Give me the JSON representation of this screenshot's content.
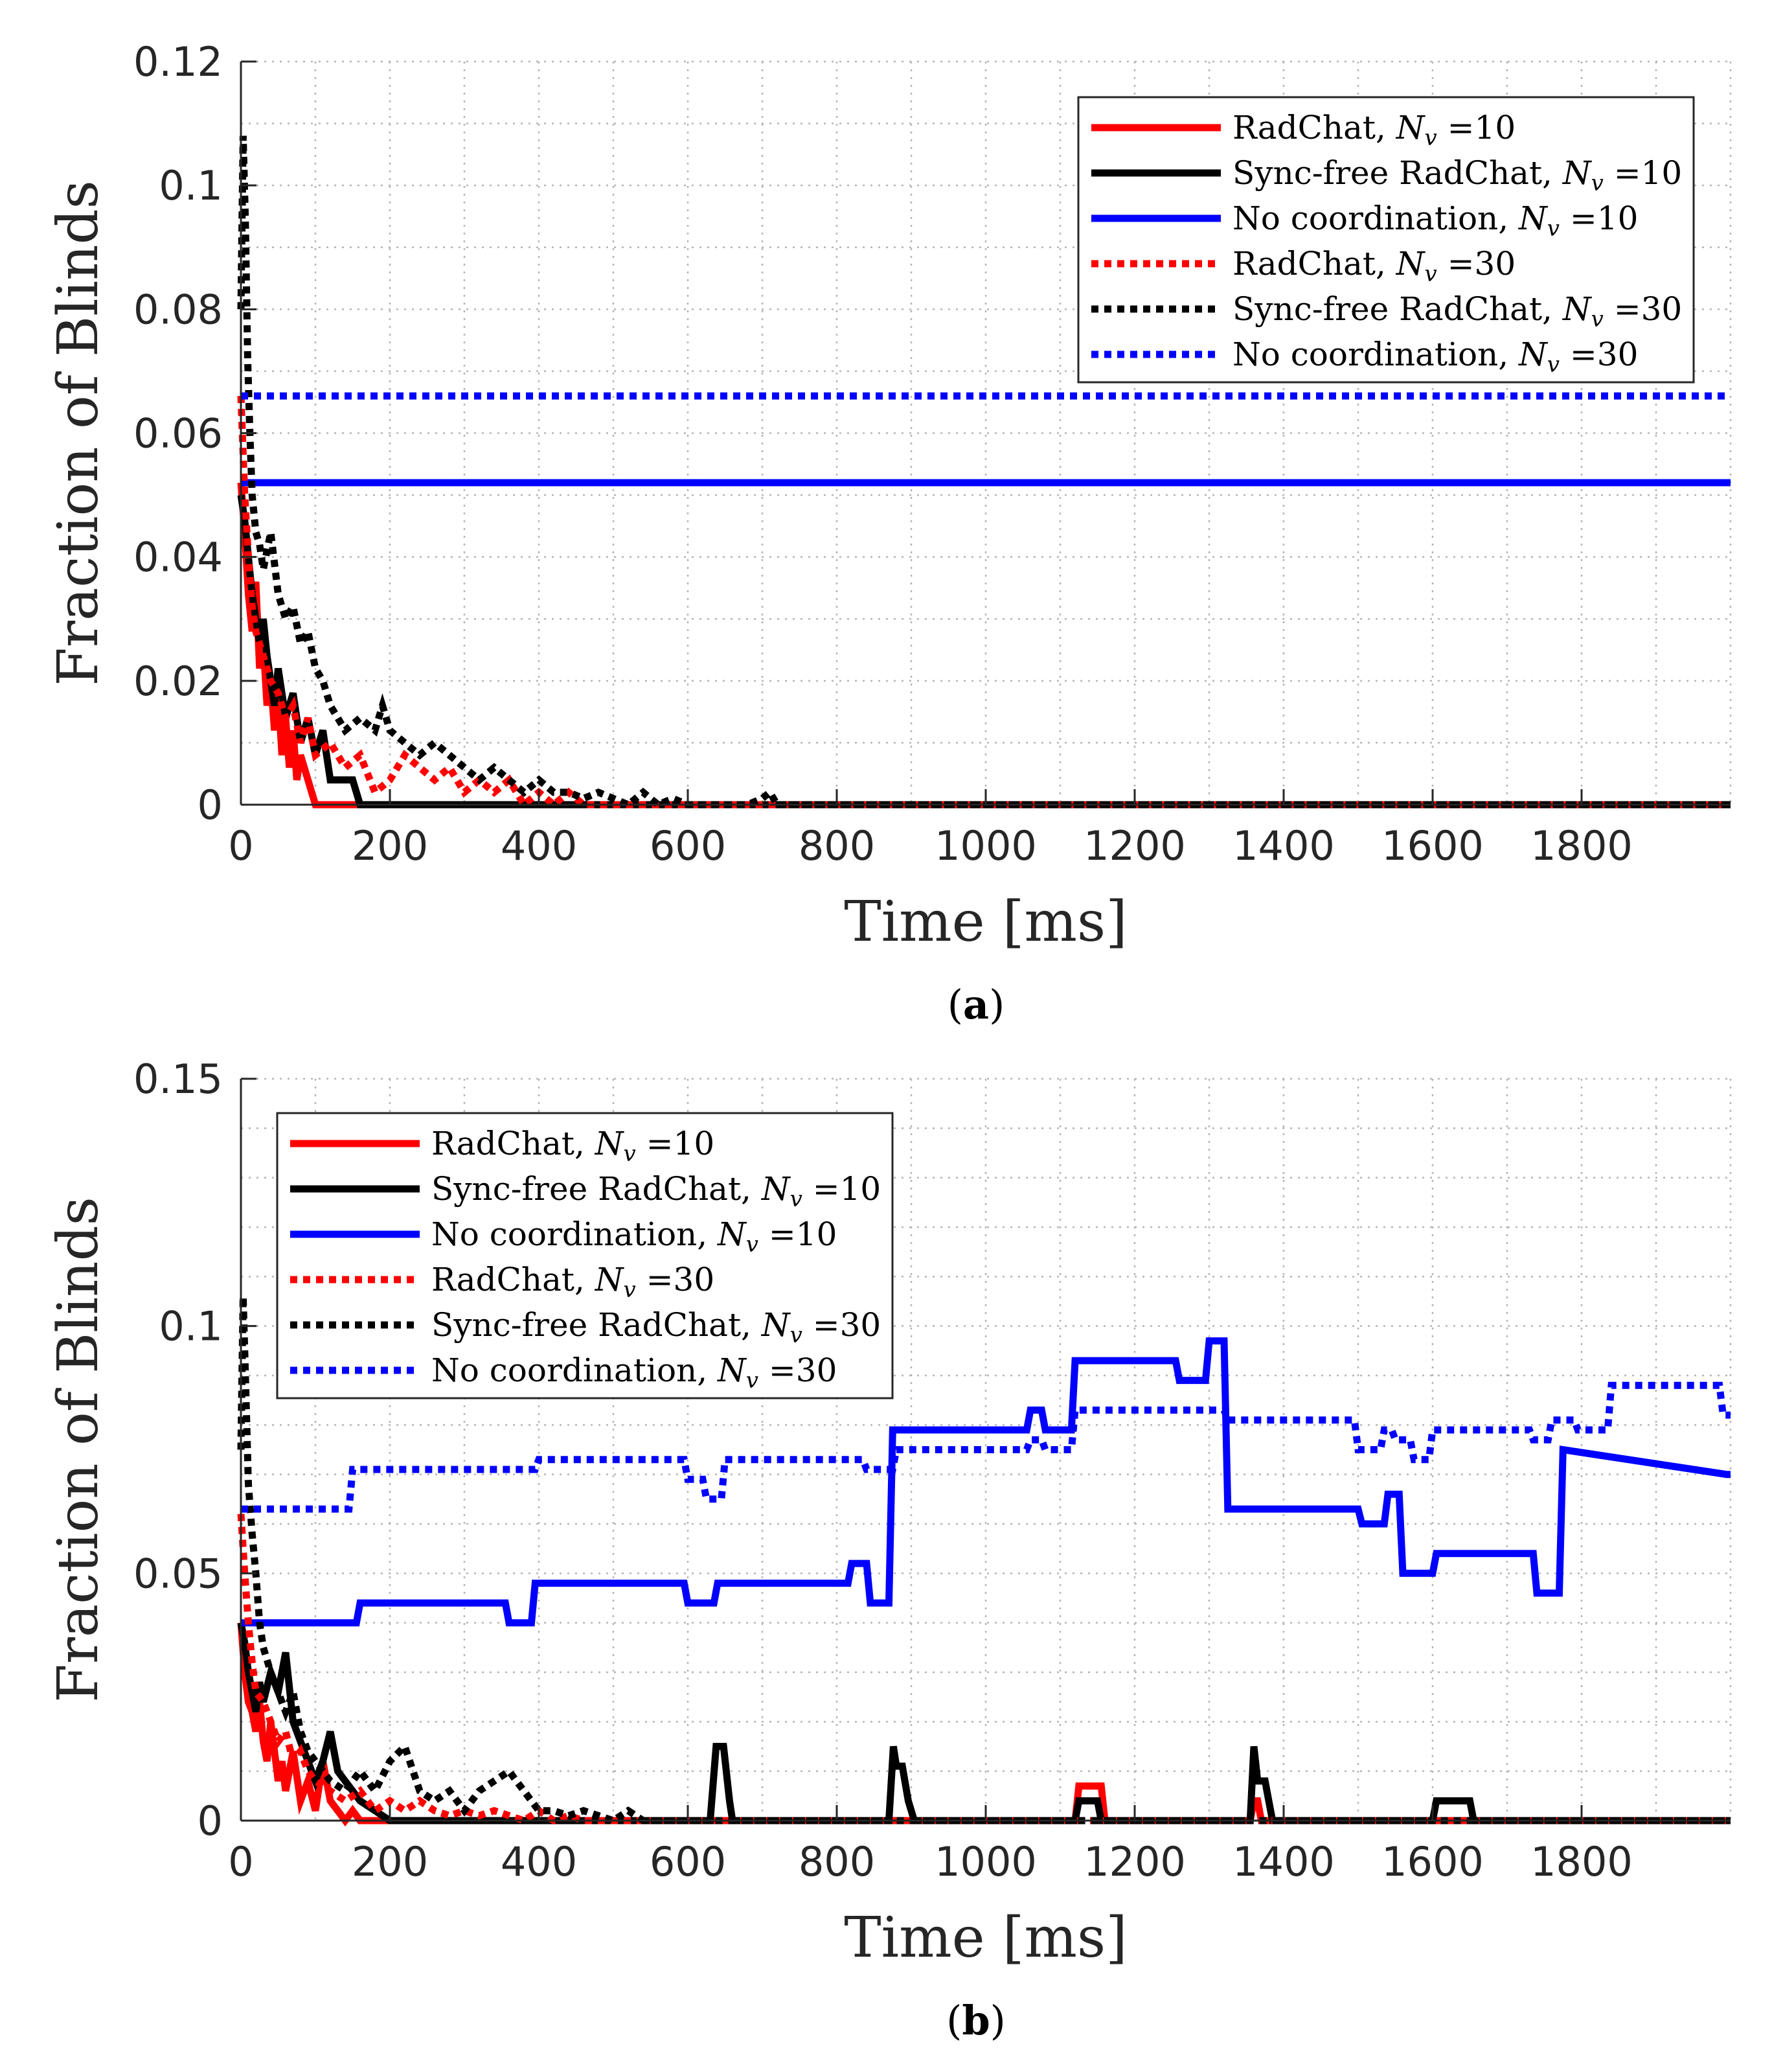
{
  "chart_data": [
    {
      "type": "line",
      "id": "a",
      "caption": "(a)",
      "xlabel": "Time [ms]",
      "ylabel": "Fraction of Blinds",
      "xlim": [
        0,
        2000
      ],
      "ylim": [
        0,
        0.12
      ],
      "xticks": [
        0,
        200,
        400,
        600,
        800,
        1000,
        1200,
        1400,
        1600,
        1800
      ],
      "yticks": [
        0,
        0.02,
        0.04,
        0.06,
        0.08,
        0.1,
        0.12
      ],
      "ytick_labels": [
        "0",
        "0.02",
        "0.04",
        "0.06",
        "0.08",
        "0.1",
        "0.12"
      ],
      "grid": true,
      "legend_position": "top-right",
      "series": [
        {
          "name": "RadChat, N_v =10",
          "label_text": "RadChat, ",
          "nv_value": "10",
          "color": "#ff0000",
          "style": "solid",
          "x": [
            0,
            5,
            10,
            15,
            20,
            25,
            30,
            35,
            40,
            45,
            50,
            55,
            60,
            65,
            70,
            75,
            80,
            90,
            100,
            110,
            2000
          ],
          "y": [
            0.052,
            0.044,
            0.034,
            0.028,
            0.036,
            0.022,
            0.026,
            0.016,
            0.02,
            0.012,
            0.018,
            0.008,
            0.014,
            0.006,
            0.012,
            0.004,
            0.008,
            0.004,
            0.0,
            0.0,
            0.0
          ]
        },
        {
          "name": "Sync-free RadChat, N_v =10",
          "label_text": "Sync-free RadChat, ",
          "nv_value": "10",
          "color": "#000000",
          "style": "solid",
          "x": [
            0,
            5,
            10,
            15,
            20,
            25,
            30,
            35,
            40,
            45,
            50,
            60,
            70,
            80,
            90,
            100,
            110,
            120,
            130,
            150,
            160,
            2000
          ],
          "y": [
            0.05,
            0.046,
            0.04,
            0.034,
            0.03,
            0.026,
            0.03,
            0.024,
            0.02,
            0.016,
            0.022,
            0.014,
            0.018,
            0.01,
            0.014,
            0.008,
            0.012,
            0.004,
            0.004,
            0.004,
            0.0,
            0.0
          ]
        },
        {
          "name": "No coordination, N_v =10",
          "label_text": "No coordination, ",
          "nv_value": "10",
          "color": "#0000ff",
          "style": "solid",
          "x": [
            0,
            2000
          ],
          "y": [
            0.052,
            0.052
          ]
        },
        {
          "name": "RadChat, N_v =30",
          "label_text": "RadChat, ",
          "nv_value": "30",
          "color": "#ff0000",
          "style": "dotted",
          "x": [
            0,
            5,
            10,
            15,
            20,
            30,
            40,
            50,
            60,
            70,
            80,
            90,
            100,
            120,
            140,
            160,
            180,
            200,
            220,
            240,
            260,
            280,
            300,
            320,
            340,
            360,
            380,
            400,
            420,
            440,
            460,
            480,
            2000
          ],
          "y": [
            0.066,
            0.05,
            0.04,
            0.032,
            0.028,
            0.024,
            0.02,
            0.018,
            0.014,
            0.016,
            0.01,
            0.014,
            0.008,
            0.01,
            0.006,
            0.008,
            0.002,
            0.004,
            0.008,
            0.006,
            0.004,
            0.006,
            0.002,
            0.004,
            0.002,
            0.004,
            0.0,
            0.002,
            0.0,
            0.002,
            0.0,
            0.0,
            0.0
          ]
        },
        {
          "name": "Sync-free RadChat, N_v =30",
          "label_text": "Sync-free RadChat, ",
          "nv_value": "30",
          "color": "#000000",
          "style": "dotted",
          "x": [
            0,
            3,
            6,
            9,
            12,
            15,
            20,
            25,
            30,
            40,
            50,
            60,
            70,
            80,
            90,
            100,
            110,
            120,
            140,
            160,
            180,
            190,
            200,
            220,
            240,
            260,
            280,
            300,
            320,
            340,
            360,
            380,
            400,
            420,
            440,
            460,
            480,
            500,
            520,
            540,
            560,
            580,
            600,
            620,
            640,
            660,
            680,
            700,
            710,
            720,
            740,
            2000
          ],
          "y": [
            0.08,
            0.108,
            0.094,
            0.072,
            0.06,
            0.05,
            0.044,
            0.042,
            0.038,
            0.044,
            0.034,
            0.03,
            0.032,
            0.026,
            0.028,
            0.022,
            0.02,
            0.016,
            0.012,
            0.014,
            0.012,
            0.016,
            0.012,
            0.01,
            0.008,
            0.01,
            0.008,
            0.006,
            0.004,
            0.006,
            0.004,
            0.002,
            0.004,
            0.002,
            0.002,
            0.001,
            0.002,
            0.001,
            0.0,
            0.002,
            0.0,
            0.001,
            0.0,
            0.0,
            0.0,
            0.0,
            0.0,
            0.001,
            0.002,
            0.0,
            0.0,
            0.0
          ]
        },
        {
          "name": "No coordination, N_v =30",
          "label_text": "No coordination, ",
          "nv_value": "30",
          "color": "#0000ff",
          "style": "dotted",
          "x": [
            0,
            2000
          ],
          "y": [
            0.066,
            0.066
          ]
        }
      ]
    },
    {
      "type": "line",
      "id": "b",
      "caption": "(b)",
      "xlabel": "Time [ms]",
      "ylabel": "Fraction of Blinds",
      "xlim": [
        0,
        2000
      ],
      "ylim": [
        0,
        0.15
      ],
      "xticks": [
        0,
        200,
        400,
        600,
        800,
        1000,
        1200,
        1400,
        1600,
        1800
      ],
      "yticks": [
        0,
        0.05,
        0.1,
        0.15
      ],
      "ytick_labels": [
        "0",
        "0.05",
        "0.1",
        "0.15"
      ],
      "minor_grid_y_step": 0.01,
      "grid": true,
      "legend_position": "top-left",
      "series": [
        {
          "name": "RadChat, N_v =10",
          "label_text": "RadChat, ",
          "nv_value": "10",
          "color": "#ff0000",
          "style": "solid",
          "x": [
            0,
            5,
            10,
            15,
            20,
            25,
            30,
            35,
            40,
            45,
            50,
            55,
            60,
            70,
            80,
            90,
            100,
            110,
            120,
            130,
            140,
            150,
            160,
            200,
            1120,
            1125,
            1155,
            1160,
            1355,
            1360,
            1365,
            1370,
            2000
          ],
          "y": [
            0.04,
            0.03,
            0.024,
            0.022,
            0.018,
            0.024,
            0.016,
            0.012,
            0.02,
            0.014,
            0.008,
            0.012,
            0.006,
            0.014,
            0.004,
            0.008,
            0.002,
            0.012,
            0.004,
            0.002,
            0.0,
            0.002,
            0.0,
            0.0,
            0.0,
            0.007,
            0.007,
            0.0,
            0.0,
            0.004,
            0.004,
            0.0,
            0.0
          ]
        },
        {
          "name": "Sync-free RadChat, N_v =10",
          "label_text": "Sync-free RadChat, ",
          "nv_value": "10",
          "color": "#000000",
          "style": "solid",
          "x": [
            0,
            5,
            10,
            15,
            20,
            25,
            30,
            40,
            50,
            60,
            70,
            80,
            90,
            100,
            110,
            120,
            130,
            140,
            150,
            160,
            180,
            200,
            630,
            638,
            648,
            656,
            660,
            870,
            876,
            880,
            888,
            896,
            904,
            1120,
            1125,
            1150,
            1155,
            1355,
            1360,
            1365,
            1375,
            1380,
            1385,
            1600,
            1605,
            1650,
            1655,
            2000
          ],
          "y": [
            0.04,
            0.036,
            0.03,
            0.026,
            0.022,
            0.028,
            0.024,
            0.03,
            0.026,
            0.034,
            0.02,
            0.016,
            0.012,
            0.008,
            0.012,
            0.018,
            0.01,
            0.008,
            0.006,
            0.004,
            0.002,
            0.0,
            0.0,
            0.015,
            0.015,
            0.004,
            0.0,
            0.0,
            0.015,
            0.011,
            0.011,
            0.004,
            0.0,
            0.0,
            0.004,
            0.004,
            0.0,
            0.0,
            0.015,
            0.008,
            0.008,
            0.004,
            0.0,
            0.0,
            0.004,
            0.004,
            0.0,
            0.0
          ]
        },
        {
          "name": "No coordination, N_v =10",
          "label_text": "No coordination, ",
          "nv_value": "10",
          "color": "#0000ff",
          "style": "solid",
          "x": [
            0,
            155,
            160,
            355,
            360,
            390,
            395,
            595,
            600,
            635,
            640,
            815,
            820,
            840,
            845,
            870,
            875,
            1055,
            1060,
            1075,
            1080,
            1115,
            1120,
            1255,
            1260,
            1295,
            1300,
            1320,
            1325,
            1500,
            1505,
            1535,
            1540,
            1555,
            1560,
            1600,
            1605,
            1735,
            1740,
            1770,
            1775,
            1995,
            2000
          ],
          "y": [
            0.04,
            0.04,
            0.044,
            0.044,
            0.04,
            0.04,
            0.048,
            0.048,
            0.044,
            0.044,
            0.048,
            0.048,
            0.052,
            0.052,
            0.044,
            0.044,
            0.079,
            0.079,
            0.083,
            0.083,
            0.079,
            0.079,
            0.093,
            0.093,
            0.089,
            0.089,
            0.097,
            0.097,
            0.063,
            0.063,
            0.06,
            0.06,
            0.066,
            0.066,
            0.05,
            0.05,
            0.054,
            0.054,
            0.046,
            0.046,
            0.075,
            0.07,
            0.07
          ]
        },
        {
          "name": "RadChat, N_v =30",
          "label_text": "RadChat, ",
          "nv_value": "30",
          "color": "#ff0000",
          "style": "dotted",
          "x": [
            0,
            5,
            10,
            15,
            20,
            30,
            40,
            50,
            60,
            70,
            80,
            90,
            100,
            120,
            140,
            160,
            180,
            200,
            220,
            240,
            260,
            280,
            300,
            320,
            340,
            360,
            380,
            400,
            420,
            440,
            460,
            480,
            2000
          ],
          "y": [
            0.062,
            0.05,
            0.04,
            0.032,
            0.026,
            0.024,
            0.02,
            0.016,
            0.018,
            0.012,
            0.014,
            0.01,
            0.008,
            0.006,
            0.004,
            0.006,
            0.002,
            0.004,
            0.002,
            0.004,
            0.002,
            0.001,
            0.002,
            0.001,
            0.002,
            0.001,
            0.0,
            0.002,
            0.0,
            0.001,
            0.0,
            0.0,
            0.0
          ]
        },
        {
          "name": "Sync-free RadChat, N_v =30",
          "label_text": "Sync-free RadChat, ",
          "nv_value": "30",
          "color": "#000000",
          "style": "dotted",
          "x": [
            0,
            3,
            6,
            10,
            15,
            20,
            25,
            30,
            40,
            50,
            60,
            70,
            80,
            90,
            100,
            120,
            140,
            160,
            180,
            200,
            220,
            240,
            260,
            280,
            300,
            320,
            340,
            360,
            380,
            400,
            420,
            440,
            460,
            480,
            500,
            520,
            540,
            2000
          ],
          "y": [
            0.075,
            0.106,
            0.09,
            0.068,
            0.058,
            0.05,
            0.04,
            0.035,
            0.03,
            0.026,
            0.022,
            0.026,
            0.018,
            0.014,
            0.012,
            0.008,
            0.006,
            0.01,
            0.006,
            0.012,
            0.015,
            0.006,
            0.004,
            0.006,
            0.002,
            0.006,
            0.008,
            0.01,
            0.006,
            0.002,
            0.002,
            0.001,
            0.002,
            0.001,
            0.0,
            0.002,
            0.0,
            0.0
          ]
        },
        {
          "name": "No coordination, N_v =30",
          "label_text": "No coordination, ",
          "nv_value": "30",
          "color": "#0000ff",
          "style": "dotted",
          "x": [
            0,
            145,
            150,
            395,
            400,
            595,
            600,
            620,
            625,
            645,
            650,
            835,
            840,
            875,
            880,
            1055,
            1060,
            1075,
            1080,
            1115,
            1120,
            1320,
            1325,
            1495,
            1500,
            1530,
            1535,
            1545,
            1550,
            1570,
            1575,
            1595,
            1600,
            1730,
            1735,
            1755,
            1760,
            1790,
            1795,
            1835,
            1840,
            1985,
            1990,
            2000
          ],
          "y": [
            0.063,
            0.063,
            0.071,
            0.071,
            0.073,
            0.073,
            0.069,
            0.069,
            0.065,
            0.065,
            0.073,
            0.073,
            0.071,
            0.071,
            0.075,
            0.075,
            0.077,
            0.077,
            0.075,
            0.075,
            0.083,
            0.083,
            0.081,
            0.081,
            0.075,
            0.075,
            0.079,
            0.079,
            0.077,
            0.077,
            0.073,
            0.073,
            0.079,
            0.079,
            0.077,
            0.077,
            0.081,
            0.081,
            0.079,
            0.079,
            0.088,
            0.088,
            0.082,
            0.082
          ]
        }
      ]
    }
  ]
}
